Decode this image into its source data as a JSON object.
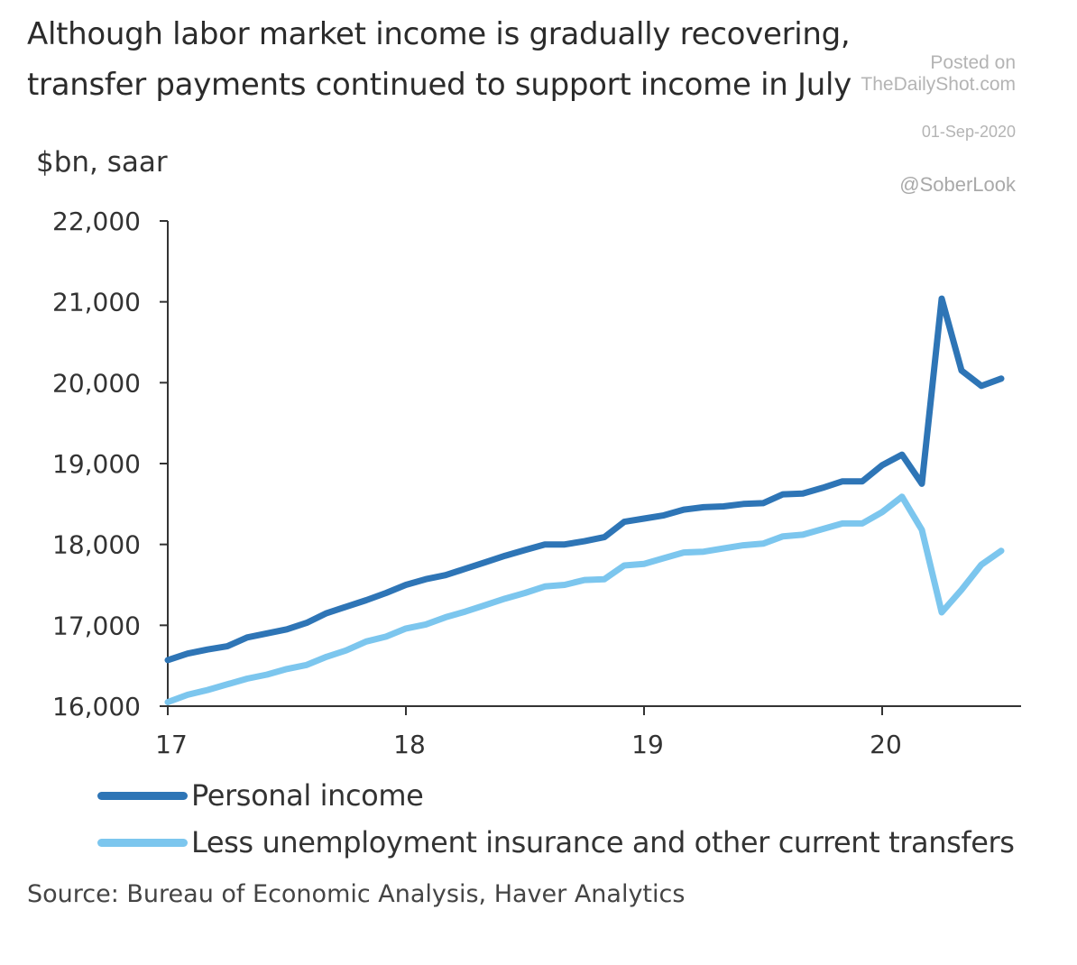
{
  "title_lines": [
    "Although labor market income is gradually recovering,",
    "transfer payments continued to support income in July"
  ],
  "watermark": {
    "posted_on": "Posted on",
    "site": "TheDailyShot.com",
    "date": "01-Sep-2020",
    "handle": "@SoberLook"
  },
  "source": "Source: Bureau of Economic Analysis, Haver Analytics",
  "colors": {
    "personal_income": "#2e75b6",
    "less_transfers": "#7cc6ee",
    "axis": "#333333"
  },
  "chart_data": {
    "type": "line",
    "ylabel": "$bn, saar",
    "ylim": [
      16000,
      22000
    ],
    "yticks": [
      16000,
      17000,
      18000,
      19000,
      20000,
      21000,
      22000
    ],
    "ytick_labels": [
      "16,000",
      "17,000",
      "18,000",
      "19,000",
      "20,000",
      "21,000",
      "22,000"
    ],
    "xlim": [
      0,
      43
    ],
    "xticks": [
      0,
      12,
      24,
      36
    ],
    "xtick_labels": [
      "17",
      "18",
      "19",
      "20"
    ],
    "x_note": "monthly, Jan 2017 to Jul 2020",
    "x": [
      "2017-01",
      "2017-02",
      "2017-03",
      "2017-04",
      "2017-05",
      "2017-06",
      "2017-07",
      "2017-08",
      "2017-09",
      "2017-10",
      "2017-11",
      "2017-12",
      "2018-01",
      "2018-02",
      "2018-03",
      "2018-04",
      "2018-05",
      "2018-06",
      "2018-07",
      "2018-08",
      "2018-09",
      "2018-10",
      "2018-11",
      "2018-12",
      "2019-01",
      "2019-02",
      "2019-03",
      "2019-04",
      "2019-05",
      "2019-06",
      "2019-07",
      "2019-08",
      "2019-09",
      "2019-10",
      "2019-11",
      "2019-12",
      "2020-01",
      "2020-02",
      "2020-03",
      "2020-04",
      "2020-05",
      "2020-06",
      "2020-07"
    ],
    "series": [
      {
        "name": "Personal income",
        "values": [
          16570,
          16650,
          16700,
          16740,
          16850,
          16900,
          16950,
          17030,
          17150,
          17230,
          17310,
          17400,
          17500,
          17570,
          17620,
          17700,
          17780,
          17860,
          17930,
          18000,
          18000,
          18040,
          18090,
          18280,
          18320,
          18360,
          18430,
          18460,
          18470,
          18500,
          18510,
          18620,
          18630,
          18700,
          18780,
          18780,
          18980,
          19110,
          18750,
          21040,
          20150,
          19960,
          20050
        ]
      },
      {
        "name": "Less unemployment insurance and other current transfers",
        "values": [
          16050,
          16140,
          16200,
          16270,
          16340,
          16390,
          16460,
          16510,
          16610,
          16690,
          16800,
          16860,
          16960,
          17010,
          17100,
          17170,
          17250,
          17330,
          17400,
          17480,
          17500,
          17560,
          17570,
          17740,
          17760,
          17830,
          17900,
          17910,
          17950,
          17990,
          18010,
          18100,
          18120,
          18190,
          18260,
          18260,
          18400,
          18590,
          18180,
          17160,
          17440,
          17750,
          17920
        ]
      }
    ]
  }
}
